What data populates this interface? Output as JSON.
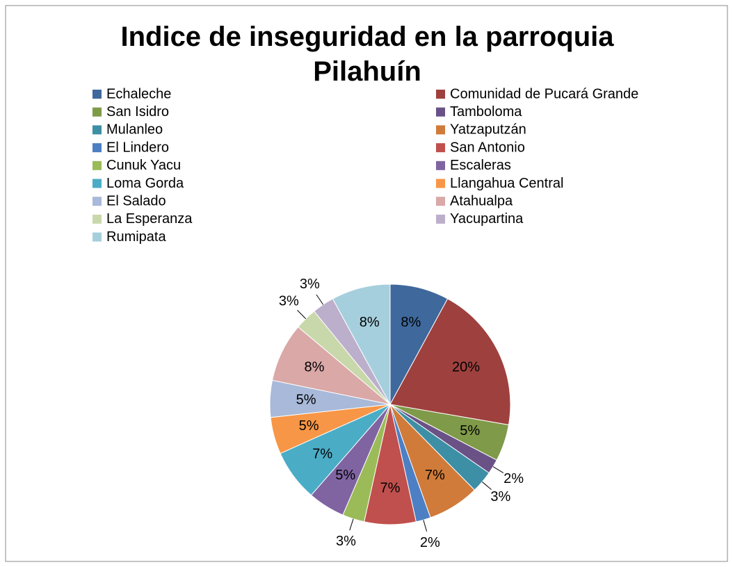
{
  "chart_data": {
    "type": "pie",
    "title": "Indice de inseguridad en la parroquia Pilahuín",
    "categories": [
      "Echaleche",
      "Comunidad de Pucará Grande",
      "San Isidro",
      "Tamboloma",
      "Mulanleo",
      "Yatzaputzán",
      "El Lindero",
      "San Antonio",
      "Cunuk Yacu",
      "Escaleras",
      "Loma Gorda",
      "Llangahua Central",
      "El Salado",
      "Atahualpa",
      "La Esperanza",
      "Yacupartina",
      "Rumipata"
    ],
    "values": [
      8,
      20,
      5,
      2,
      3,
      7,
      2,
      7,
      3,
      5,
      7,
      5,
      5,
      8,
      3,
      3,
      8
    ],
    "value_labels": [
      "8%",
      "20%",
      "5%",
      "2%",
      "3%",
      "7%",
      "2%",
      "7%",
      "3%",
      "5%",
      "7%",
      "5%",
      "5%",
      "8%",
      "3%",
      "3%",
      "8%"
    ],
    "colors": [
      "#3f689c",
      "#9e413e",
      "#7f9a48",
      "#6a5287",
      "#3d8fa5",
      "#d07b3a",
      "#4d7fc4",
      "#c0504d",
      "#9bbb59",
      "#8064a2",
      "#4bacc6",
      "#f79646",
      "#a8b9d9",
      "#d9a8a7",
      "#c9d8ab",
      "#bcafcc",
      "#a6cfdd"
    ],
    "legend": "top"
  }
}
